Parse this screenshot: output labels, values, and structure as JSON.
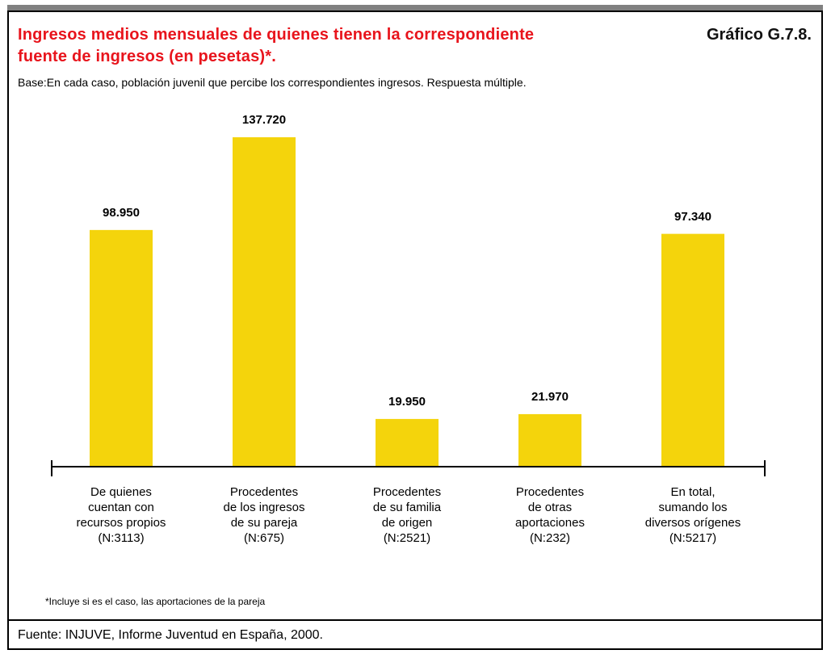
{
  "chart_data": {
    "type": "bar",
    "title": "Ingresos medios mensuales de quienes tienen la correspondiente\nfuente de ingresos (en pesetas)*.",
    "chart_id": "Gráfico G.7.8.",
    "subtitle": "Base:En cada caso, población juvenil que percibe los correspondientes ingresos. Respuesta múltiple.",
    "categories": [
      "De quienes\ncuentan con\nrecursos propios\n(N:3113)",
      "Procedentes\nde los ingresos\nde su pareja\n(N:675)",
      "Procedentes\nde su familia\nde origen\n(N:2521)",
      "Procedentes\nde otras\naportaciones\n(N:232)",
      "En total,\nsumando los\ndiversos orígenes\n(N:5217)"
    ],
    "values": [
      98950,
      137720,
      19950,
      21970,
      97340
    ],
    "value_labels": [
      "98.950",
      "137.720",
      "19.950",
      "21.970",
      "97.340"
    ],
    "color": "#f4d40c",
    "footnote": "*Incluye si es el caso, las aportaciones de la pareja",
    "source": "Fuente: INJUVE, Informe Juventud en España, 2000."
  }
}
